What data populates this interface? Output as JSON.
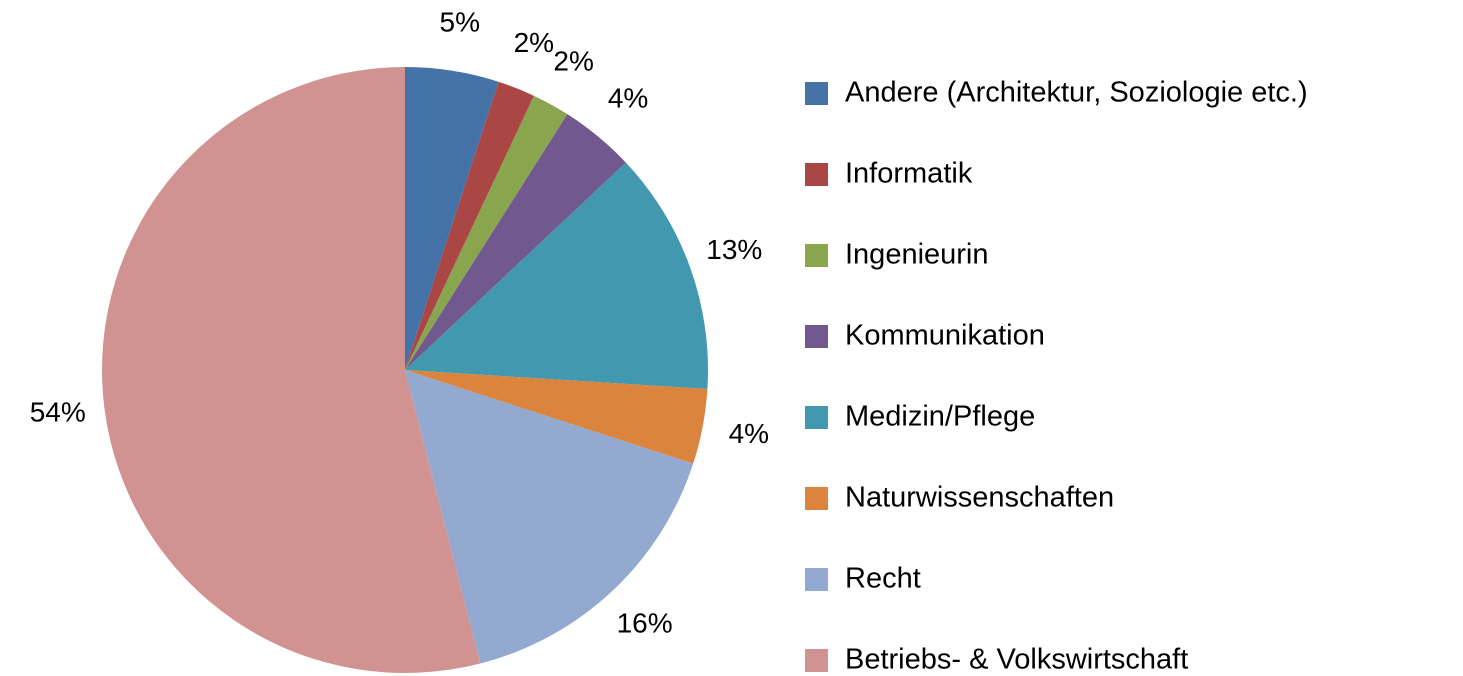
{
  "chart_data": {
    "type": "pie",
    "categories": [
      "Andere (Architektur, Soziologie etc.)",
      "Informatik",
      "Ingenieurin",
      "Kommunikation",
      "Medizin/Pflege",
      "Naturwissenschaften",
      "Recht",
      "Betriebs- & Volkswirtschaft"
    ],
    "values": [
      5,
      2,
      2,
      4,
      13,
      4,
      16,
      54
    ],
    "value_labels": [
      "5%",
      "2%",
      "2%",
      "4%",
      "13%",
      "4%",
      "16%",
      "54%"
    ],
    "colors": [
      "#4572a7",
      "#aa4643",
      "#89a54e",
      "#71588f",
      "#4198af",
      "#db843d",
      "#93a9cf",
      "#d19392"
    ],
    "legend": "right"
  }
}
